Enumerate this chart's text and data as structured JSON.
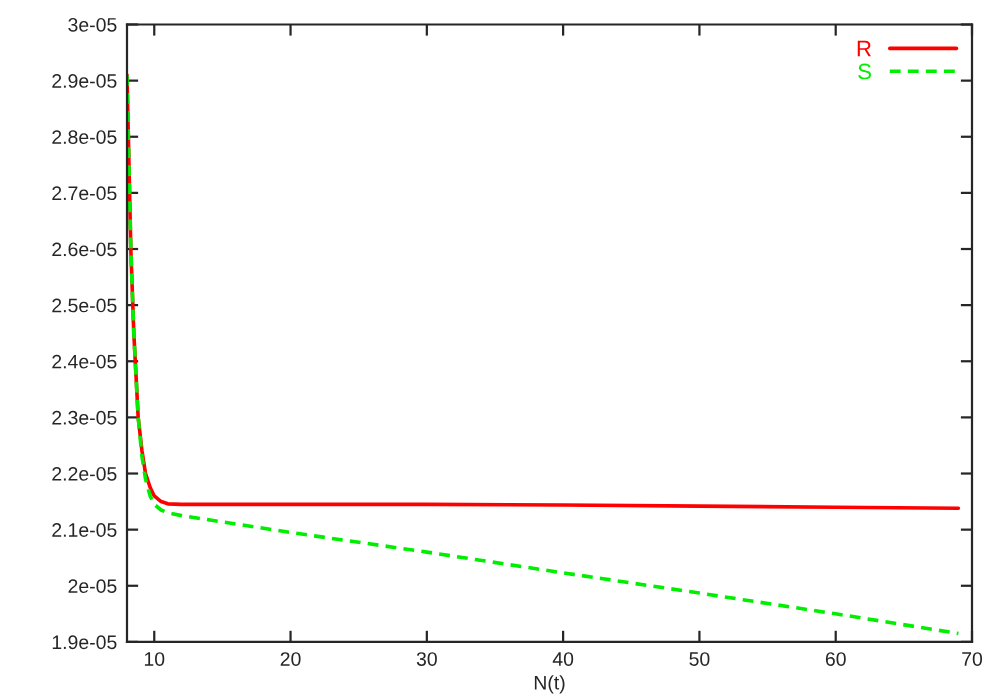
{
  "chart_data": {
    "type": "line",
    "xlabel": "N(t)",
    "xlim": [
      8,
      70
    ],
    "xticks": [
      10,
      20,
      30,
      40,
      50,
      60,
      70
    ],
    "ylim": [
      1.9e-05,
      3e-05
    ],
    "yticks": [
      {
        "value": 1.9e-05,
        "label": "1.9e-05"
      },
      {
        "value": 2e-05,
        "label": "2e-05"
      },
      {
        "value": 2.1e-05,
        "label": "2.1e-05"
      },
      {
        "value": 2.2e-05,
        "label": "2.2e-05"
      },
      {
        "value": 2.3e-05,
        "label": "2.3e-05"
      },
      {
        "value": 2.4e-05,
        "label": "2.4e-05"
      },
      {
        "value": 2.5e-05,
        "label": "2.5e-05"
      },
      {
        "value": 2.6e-05,
        "label": "2.6e-05"
      },
      {
        "value": 2.7e-05,
        "label": "2.7e-05"
      },
      {
        "value": 2.8e-05,
        "label": "2.8e-05"
      },
      {
        "value": 2.9e-05,
        "label": "2.9e-05"
      },
      {
        "value": 3e-05,
        "label": "3e-05"
      }
    ],
    "legend": "top right",
    "grid": false,
    "marker": "none",
    "series": [
      {
        "name": "R",
        "color": "#ff0000",
        "line_style": "solid",
        "x": [
          8,
          8.1,
          8.28,
          8.5,
          8.82,
          9.1,
          9.36,
          9.7,
          10,
          10.5,
          11,
          12,
          20,
          30,
          40,
          50,
          60,
          69
        ],
        "values": [
          2.91e-05,
          2.8e-05,
          2.6e-05,
          2.45e-05,
          2.3e-05,
          2.24e-05,
          2.2e-05,
          2.175e-05,
          2.16e-05,
          2.15e-05,
          2.146e-05,
          2.145e-05,
          2.145e-05,
          2.145e-05,
          2.144e-05,
          2.142e-05,
          2.14e-05,
          2.138e-05
        ]
      },
      {
        "name": "S",
        "color": "#00ee00",
        "line_style": "dashed",
        "x": [
          8,
          8.1,
          8.28,
          8.5,
          8.82,
          9.1,
          9.36,
          9.7,
          10,
          10.5,
          11,
          12,
          20,
          30,
          40,
          50,
          60,
          69
        ],
        "values": [
          2.91e-05,
          2.8e-05,
          2.6e-05,
          2.45e-05,
          2.3e-05,
          2.23e-05,
          2.19e-05,
          2.16e-05,
          2.145e-05,
          2.135e-05,
          2.13e-05,
          2.125e-05,
          2.095e-05,
          2.06e-05,
          2.023e-05,
          1.987e-05,
          1.95e-05,
          1.915e-05
        ]
      }
    ]
  }
}
